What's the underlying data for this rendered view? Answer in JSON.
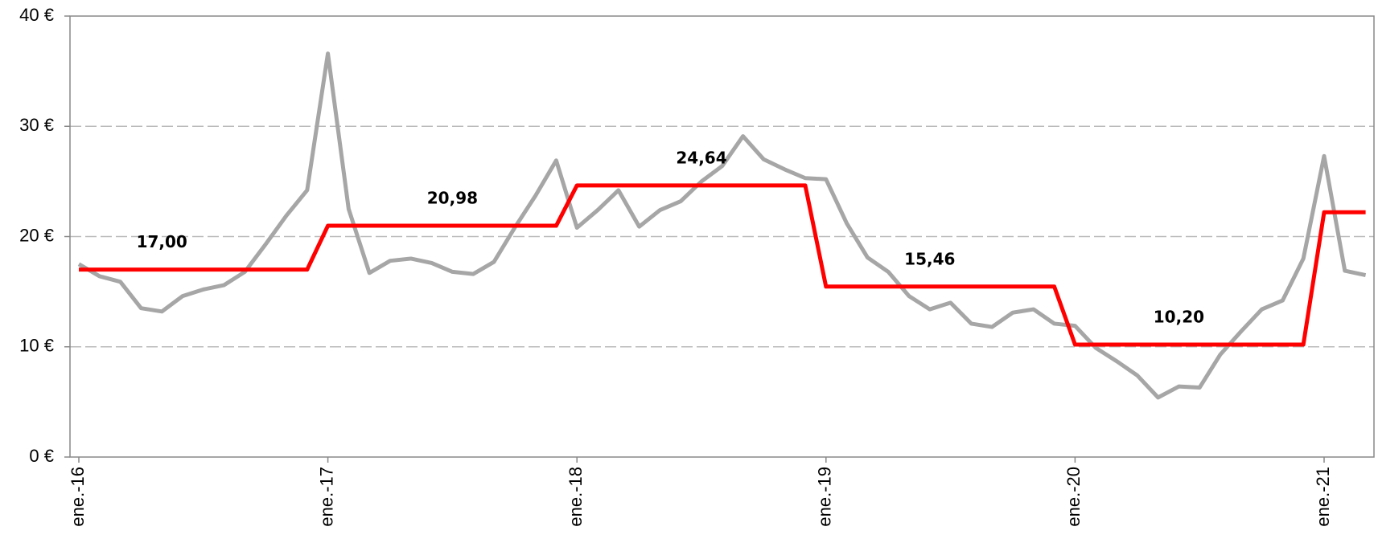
{
  "chart_data": {
    "type": "line",
    "categories": [
      "ene.-16",
      null,
      null,
      null,
      null,
      null,
      null,
      null,
      null,
      null,
      null,
      null,
      "ene.-17",
      null,
      null,
      null,
      null,
      null,
      null,
      null,
      null,
      null,
      null,
      null,
      "ene.-18",
      null,
      null,
      null,
      null,
      null,
      null,
      null,
      null,
      null,
      null,
      null,
      "ene.-19",
      null,
      null,
      null,
      null,
      null,
      null,
      null,
      null,
      null,
      null,
      null,
      "ene.-20",
      null,
      null,
      null,
      null,
      null,
      null,
      null,
      null,
      null,
      null,
      null,
      "ene.-21",
      null,
      null
    ],
    "series": [
      {
        "color": "#a6a6a6",
        "values": [
          17.5,
          16.4,
          15.9,
          13.5,
          13.2,
          14.6,
          15.2,
          15.6,
          16.8,
          19.3,
          21.9,
          24.2,
          36.6,
          22.5,
          16.7,
          17.8,
          18.0,
          17.6,
          16.8,
          16.6,
          17.7,
          20.8,
          23.7,
          26.9,
          20.8,
          22.4,
          24.2,
          20.9,
          22.4,
          23.2,
          25.0,
          26.4,
          29.1,
          27.0,
          26.1,
          25.3,
          25.2,
          21.2,
          18.1,
          16.8,
          14.6,
          13.4,
          14.0,
          12.1,
          11.8,
          13.1,
          13.4,
          12.1,
          11.9,
          9.9,
          8.7,
          7.4,
          5.4,
          6.4,
          6.3,
          9.3,
          11.4,
          13.4,
          14.2,
          18.0,
          27.3,
          16.9,
          16.5
        ]
      },
      {
        "color": "#ff0000",
        "values": [
          17.0,
          17.0,
          17.0,
          17.0,
          17.0,
          17.0,
          17.0,
          17.0,
          17.0,
          17.0,
          17.0,
          17.0,
          20.98,
          20.98,
          20.98,
          20.98,
          20.98,
          20.98,
          20.98,
          20.98,
          20.98,
          20.98,
          20.98,
          20.98,
          24.64,
          24.64,
          24.64,
          24.64,
          24.64,
          24.64,
          24.64,
          24.64,
          24.64,
          24.64,
          24.64,
          24.64,
          15.46,
          15.46,
          15.46,
          15.46,
          15.46,
          15.46,
          15.46,
          15.46,
          15.46,
          15.46,
          15.46,
          15.46,
          10.2,
          10.2,
          10.2,
          10.2,
          10.2,
          10.2,
          10.2,
          10.2,
          10.2,
          10.2,
          10.2,
          10.2,
          22.2,
          22.2,
          22.2
        ],
        "value_labels": [
          null,
          null,
          null,
          null,
          "17,00",
          null,
          null,
          null,
          null,
          null,
          null,
          null,
          null,
          null,
          null,
          null,
          null,
          null,
          "20,98",
          null,
          null,
          null,
          null,
          null,
          null,
          null,
          null,
          null,
          null,
          null,
          "24,64",
          null,
          null,
          null,
          null,
          null,
          null,
          null,
          null,
          null,
          null,
          "15,46",
          null,
          null,
          null,
          null,
          null,
          null,
          null,
          null,
          null,
          null,
          null,
          "10,20",
          null,
          null,
          null,
          null,
          null,
          null,
          null,
          null,
          null
        ]
      }
    ],
    "ylim": [
      0,
      40
    ],
    "yticks": [
      {
        "value": 0,
        "label": "0 €"
      },
      {
        "value": 10,
        "label": "10 €"
      },
      {
        "value": 20,
        "label": "20 €"
      },
      {
        "value": 30,
        "label": "30 €"
      },
      {
        "value": 40,
        "label": "40 €"
      }
    ],
    "grid": true
  }
}
